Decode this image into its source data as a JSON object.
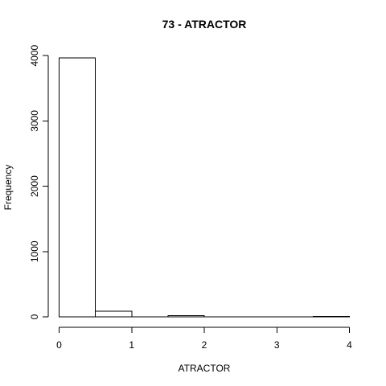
{
  "chart_data": {
    "type": "bar",
    "title": "73 - ATRACTOR",
    "xlabel": "ATRACTOR",
    "ylabel": "Frequency",
    "bins": [
      {
        "start": 0.0,
        "end": 0.5,
        "value": 3965
      },
      {
        "start": 0.5,
        "end": 1.0,
        "value": 85
      },
      {
        "start": 1.0,
        "end": 1.5,
        "value": 2
      },
      {
        "start": 1.5,
        "end": 2.0,
        "value": 20
      },
      {
        "start": 2.0,
        "end": 2.5,
        "value": 2
      },
      {
        "start": 2.5,
        "end": 3.0,
        "value": 1
      },
      {
        "start": 3.0,
        "end": 3.5,
        "value": 1
      },
      {
        "start": 3.5,
        "end": 4.0,
        "value": 8
      }
    ],
    "xlim": [
      0,
      4
    ],
    "ylim": [
      0,
      3965
    ],
    "x_ticks": [
      "0",
      "1",
      "2",
      "3",
      "4"
    ],
    "y_ticks": [
      "0",
      "1000",
      "2000",
      "3000",
      "4000"
    ],
    "grid": false,
    "colors": {
      "bar_fill": "#ffffff",
      "bar_stroke": "#000000"
    }
  }
}
